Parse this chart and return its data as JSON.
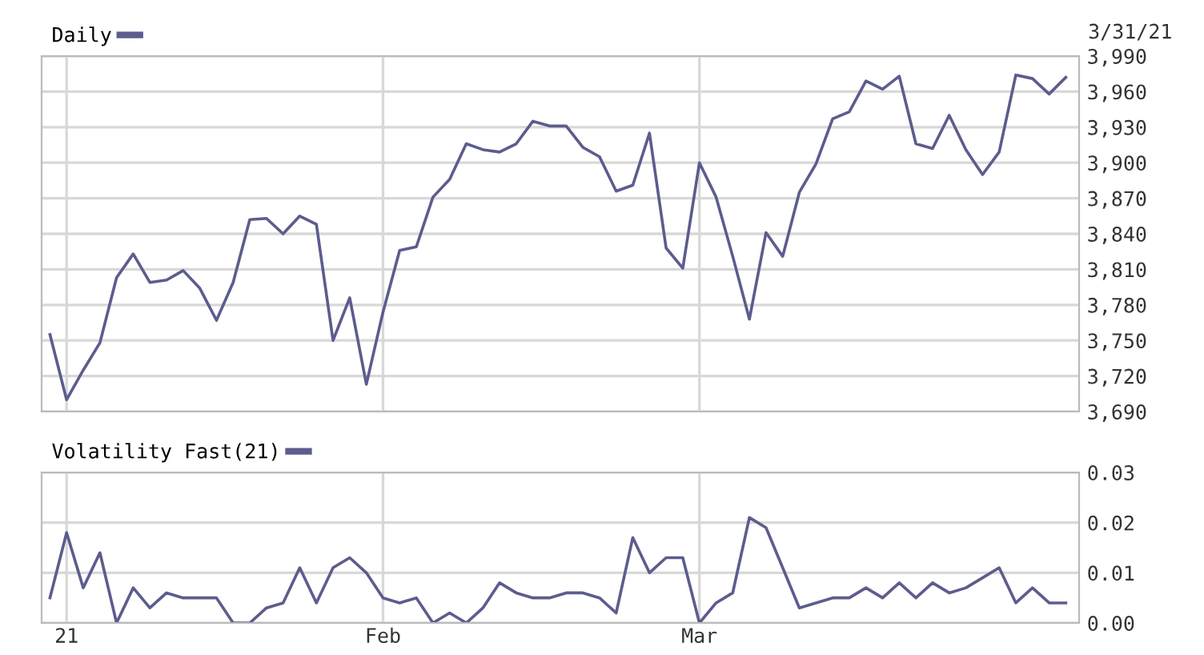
{
  "chart_data": [
    {
      "type": "line",
      "categories": [
        null,
        null,
        null,
        null,
        null,
        null,
        null,
        null,
        null,
        null,
        null,
        null,
        null,
        null,
        null,
        null,
        null,
        null,
        null,
        null,
        null,
        null,
        null,
        null,
        null,
        null,
        null,
        null,
        null,
        null,
        null,
        null,
        null,
        null,
        null,
        null,
        null,
        null,
        null,
        null,
        null,
        null,
        null,
        null,
        null,
        null,
        null,
        null,
        null,
        null,
        null,
        null,
        null,
        null,
        null,
        null,
        null,
        null,
        null,
        null,
        null,
        null
      ],
      "series": [
        {
          "name": "Daily",
          "color": "#5c5c8e",
          "values": [
            3755,
            3700,
            3725,
            3748,
            3803,
            3823,
            3799,
            3801,
            3809,
            3794,
            3767,
            3799,
            3852,
            3853,
            3840,
            3855,
            3848,
            3750,
            3786,
            3713,
            3774,
            3826,
            3829,
            3871,
            3886,
            3916,
            3911,
            3909,
            3916,
            3935,
            3931,
            3931,
            3913,
            3905,
            3876,
            3881,
            3925,
            3828,
            3811,
            3900,
            3871,
            3821,
            3768,
            3841,
            3821,
            3875,
            3899,
            3937,
            3943,
            3969,
            3962,
            3973,
            3916,
            3912,
            3940,
            3911,
            3890,
            3909,
            3974,
            3971,
            3958,
            3972
          ]
        }
      ],
      "ylim": [
        3690,
        3990
      ],
      "yticks": [
        {
          "value": 3690,
          "label": "3,690"
        },
        {
          "value": 3720,
          "label": "3,720"
        },
        {
          "value": 3750,
          "label": "3,750"
        },
        {
          "value": 3780,
          "label": "3,780"
        },
        {
          "value": 3810,
          "label": "3,810"
        },
        {
          "value": 3840,
          "label": "3,840"
        },
        {
          "value": 3870,
          "label": "3,870"
        },
        {
          "value": 3900,
          "label": "3,900"
        },
        {
          "value": 3930,
          "label": "3,930"
        },
        {
          "value": 3960,
          "label": "3,960"
        },
        {
          "value": 3990,
          "label": "3,990"
        }
      ],
      "annotations": [
        "3/31/21"
      ],
      "grid": true,
      "legend": "top left",
      "tick_labels": "y",
      "marker": "none",
      "line_style": "solid"
    },
    {
      "type": "line",
      "categories": [
        null,
        "21",
        null,
        null,
        null,
        null,
        null,
        null,
        null,
        null,
        null,
        null,
        null,
        null,
        null,
        null,
        null,
        null,
        null,
        null,
        "Feb",
        null,
        null,
        null,
        null,
        null,
        null,
        null,
        null,
        null,
        null,
        null,
        null,
        null,
        null,
        null,
        null,
        null,
        null,
        "Mar",
        null,
        null,
        null,
        null,
        null,
        null,
        null,
        null,
        null,
        null,
        null,
        null,
        null,
        null,
        null,
        null,
        null,
        null,
        null,
        null,
        null,
        null
      ],
      "series": [
        {
          "name": "Volatility Fast(21)",
          "color": "#5c5c8e",
          "values": [
            0.005,
            0.018,
            0.007,
            0.014,
            0.0,
            0.007,
            0.003,
            0.006,
            0.005,
            0.005,
            0.005,
            0.0,
            0.0,
            0.003,
            0.004,
            0.011,
            0.004,
            0.011,
            0.013,
            0.01,
            0.005,
            0.004,
            0.005,
            0.0,
            0.002,
            0.0,
            0.003,
            0.008,
            0.006,
            0.005,
            0.005,
            0.006,
            0.006,
            0.005,
            0.002,
            0.017,
            0.01,
            0.013,
            0.013,
            0.0,
            0.004,
            0.006,
            0.021,
            0.019,
            0.011,
            0.003,
            0.004,
            0.005,
            0.005,
            0.007,
            0.005,
            0.008,
            0.005,
            0.008,
            0.006,
            0.007,
            0.009,
            0.011,
            0.004,
            0.007,
            0.004,
            0.004
          ]
        }
      ],
      "ylim": [
        0,
        0.03
      ],
      "yticks": [
        {
          "value": 0,
          "label": "0.00"
        },
        {
          "value": 0.01,
          "label": "0.01"
        },
        {
          "value": 0.02,
          "label": "0.02"
        },
        {
          "value": 0.03,
          "label": "0.03"
        }
      ],
      "grid": true,
      "legend": "top left",
      "marker": "none",
      "line_style": "solid"
    }
  ]
}
